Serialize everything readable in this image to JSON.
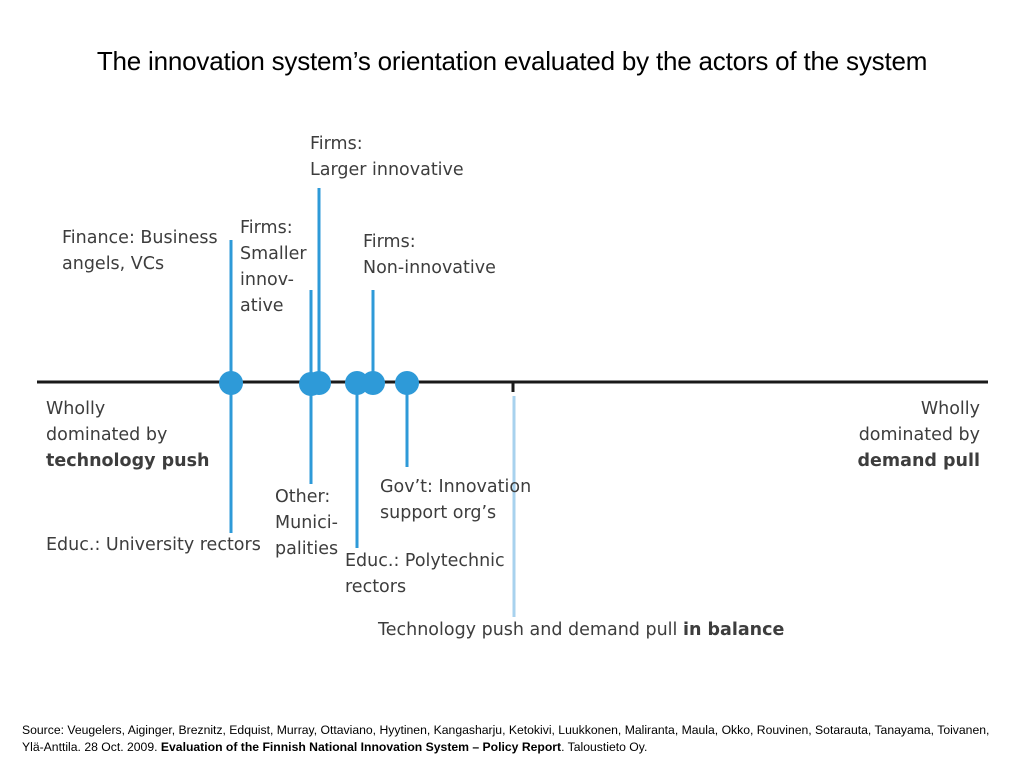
{
  "title": "The innovation system’s orientation evaluated by the actors of the system",
  "colors": {
    "marker": "#2e9ad8",
    "balance_line": "#a8d2ee",
    "axis": "#1a1a1a"
  },
  "axis": {
    "left": [
      "Wholly",
      "dominated by",
      "technology push"
    ],
    "right": [
      "Wholly",
      "dominated by",
      "demand pull"
    ],
    "balance": {
      "text": "Technology push and demand pull ",
      "bold": "in balance"
    }
  },
  "actors": {
    "finance": [
      "Finance: Business",
      "angels, VCs"
    ],
    "firms_smaller": [
      "Firms:",
      "Smaller",
      "innov-",
      "ative"
    ],
    "firms_larger": [
      "Firms:",
      "Larger innovative"
    ],
    "firms_non": [
      "Firms:",
      "Non-innovative"
    ],
    "edu_university": [
      "Educ.: University rectors"
    ],
    "other_municipalities": [
      "Other:",
      "Munici-",
      "palities"
    ],
    "edu_polytechnic": [
      "Educ.: Polytechnic",
      "rectors"
    ],
    "govt": [
      "Gov’t: Innovation",
      "support org’s"
    ]
  },
  "source": {
    "prefix": "Source: Veugelers, Aiginger, Breznitz, Edquist, Murray, Ottaviano, Hyytinen, Kangasharju, Ketokivi, Luukkonen, Maliranta, Maula, Okko, Rouvinen, Sotarauta, Tanayama, Toivanen, Ylä-Anttila. 28 Oct. 2009. ",
    "report": "Evaluation of the Finnish National Innovation System – Policy Report",
    "suffix": ". Taloustieto Oy."
  }
}
